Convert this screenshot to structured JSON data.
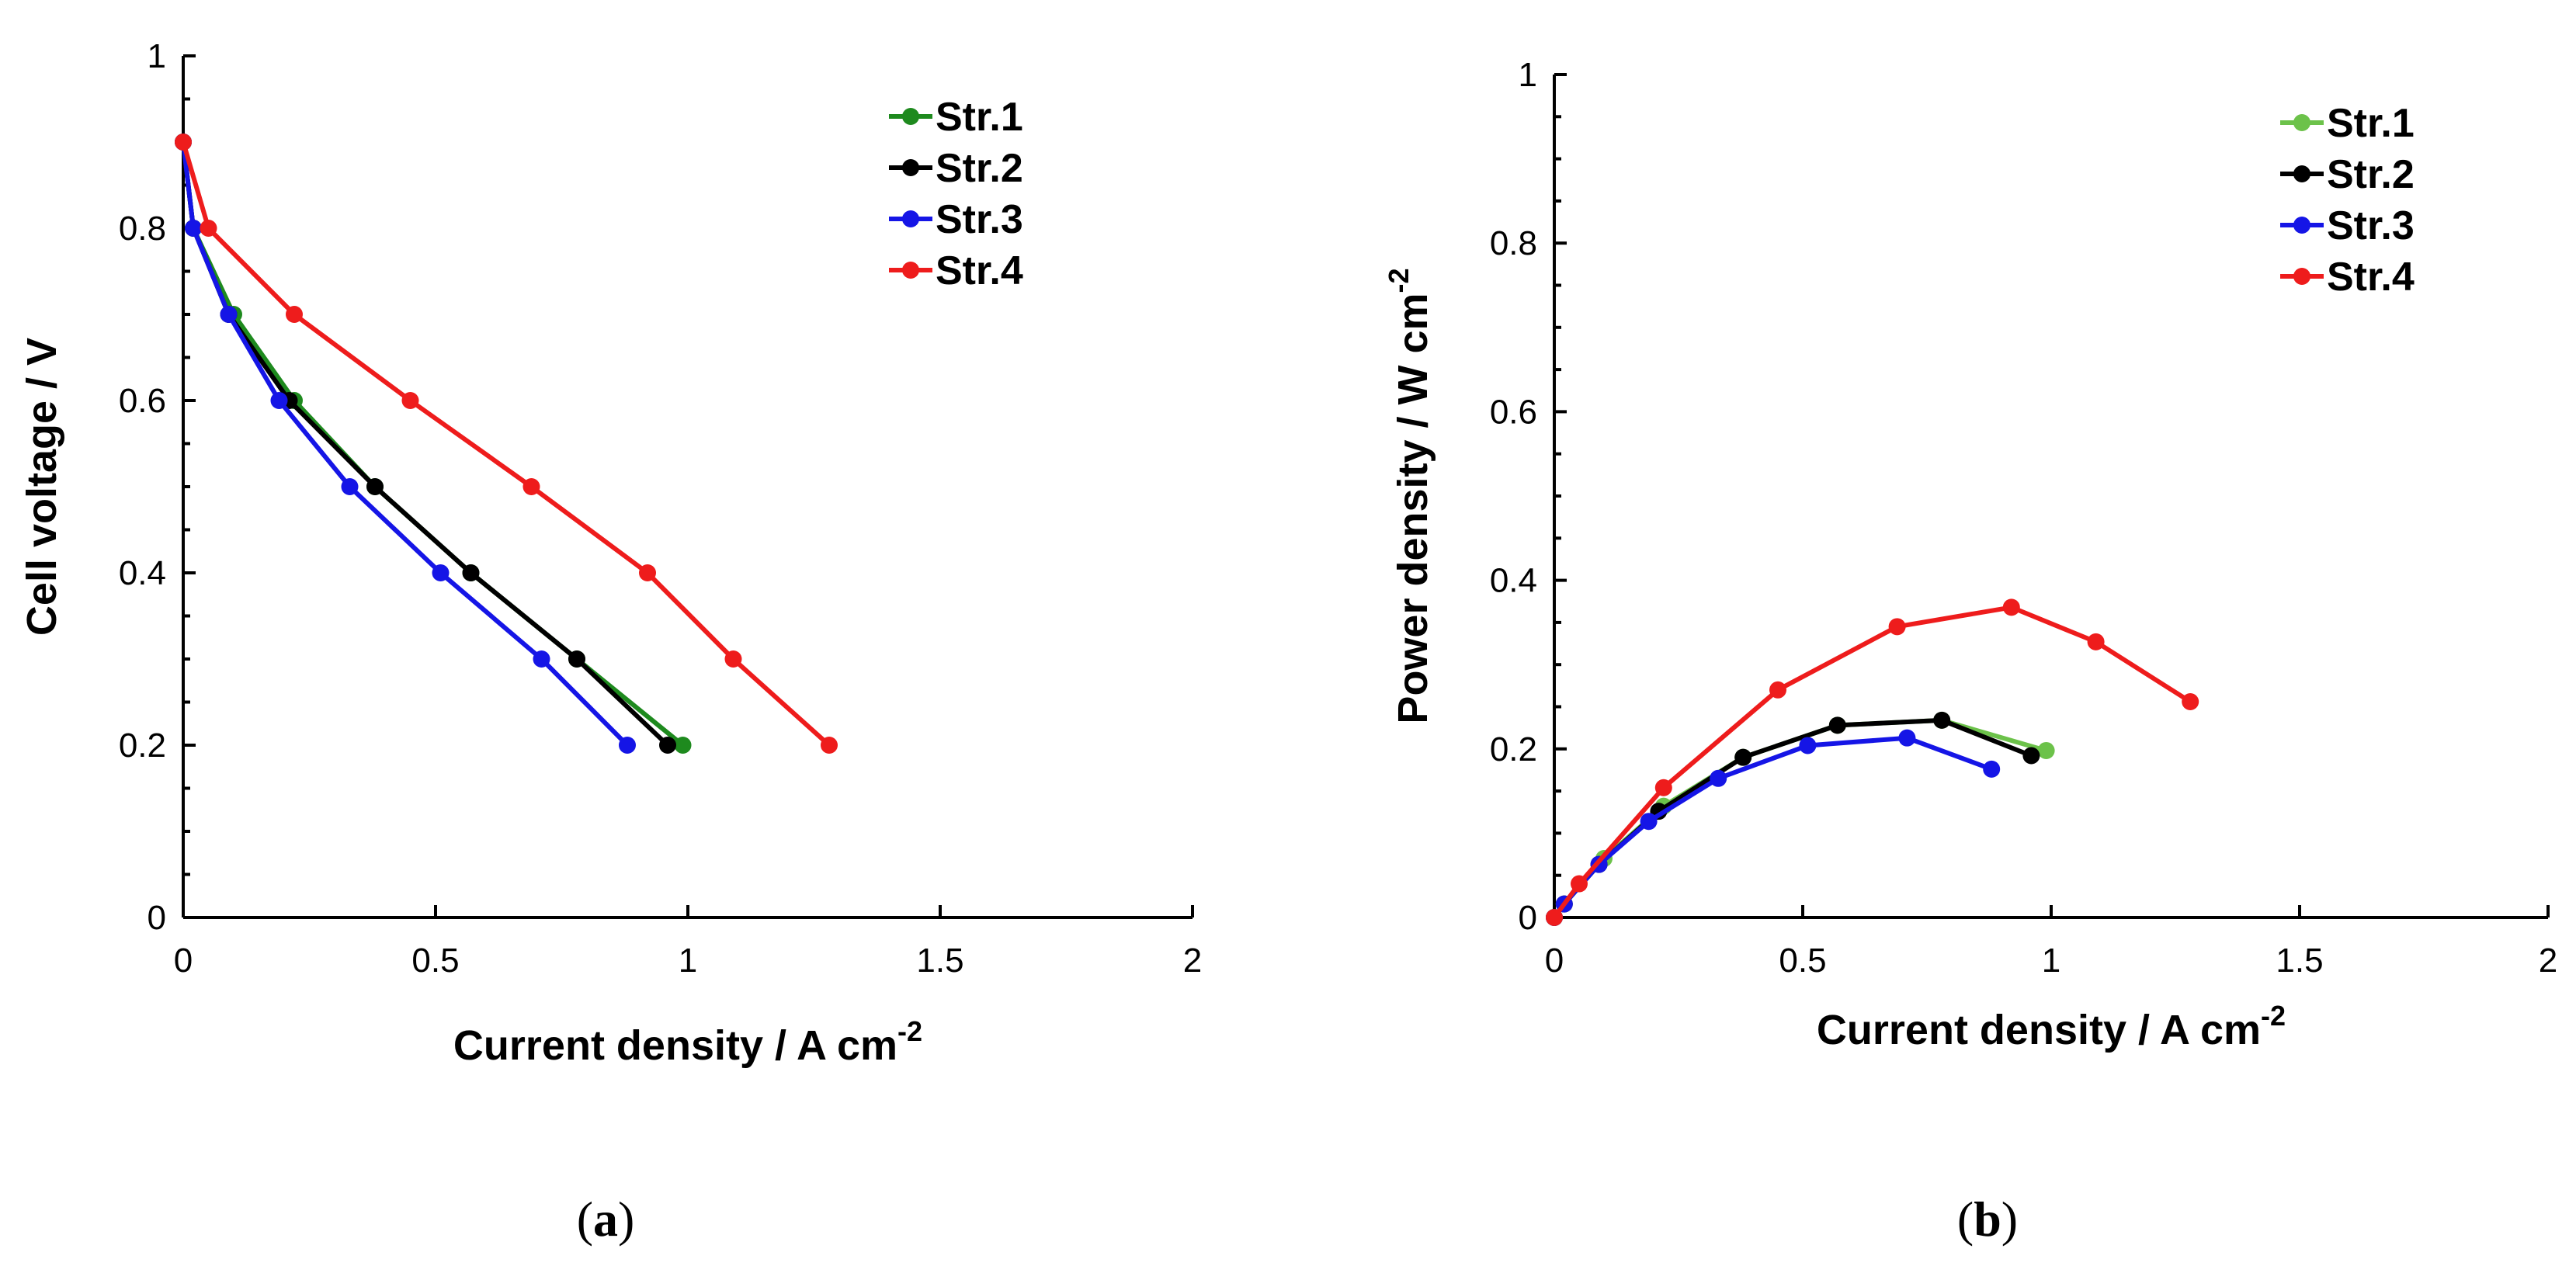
{
  "chart_data": [
    {
      "type": "line",
      "panel_label": "a",
      "title": "",
      "xlabel": "Current density / A cm",
      "xlabel_superscript": "-2",
      "ylabel": "Cell voltage  / V",
      "xlim": [
        0,
        2
      ],
      "ylim": [
        0,
        1
      ],
      "xticks": [
        0,
        0.5,
        1,
        1.5,
        2
      ],
      "xtick_labels": [
        "0",
        "0.5",
        "1",
        "1.5",
        "2"
      ],
      "yticks": [
        0,
        0.2,
        0.4,
        0.6,
        0.8,
        1
      ],
      "ytick_labels": [
        "0",
        "0.2",
        "0.4",
        "0.6",
        "0.8",
        "1"
      ],
      "legend_position": "top-right",
      "series": [
        {
          "name": "Str.1",
          "color": "#1e8a1e",
          "x": [
            0,
            0.02,
            0.1,
            0.22,
            0.38,
            0.57,
            0.78,
            0.99
          ],
          "y": [
            0.9,
            0.8,
            0.7,
            0.6,
            0.5,
            0.4,
            0.3,
            0.2
          ]
        },
        {
          "name": "Str.2",
          "color": "#000000",
          "x": [
            0,
            0.02,
            0.09,
            0.21,
            0.38,
            0.57,
            0.78,
            0.96
          ],
          "y": [
            0.9,
            0.8,
            0.7,
            0.6,
            0.5,
            0.4,
            0.3,
            0.2
          ]
        },
        {
          "name": "Str.3",
          "color": "#1515e6",
          "x": [
            0,
            0.02,
            0.09,
            0.19,
            0.33,
            0.51,
            0.71,
            0.88
          ],
          "y": [
            0.9,
            0.8,
            0.7,
            0.6,
            0.5,
            0.4,
            0.3,
            0.2
          ]
        },
        {
          "name": "Str.4",
          "color": "#ee1c1c",
          "x": [
            0,
            0.05,
            0.22,
            0.45,
            0.69,
            0.92,
            1.09,
            1.28
          ],
          "y": [
            0.9,
            0.8,
            0.7,
            0.6,
            0.5,
            0.4,
            0.3,
            0.2
          ]
        }
      ]
    },
    {
      "type": "line",
      "panel_label": "b",
      "title": "",
      "xlabel": "Current density / A cm",
      "xlabel_superscript": "-2",
      "ylabel": "Power density / W cm",
      "ylabel_superscript": "-2",
      "xlim": [
        0,
        2
      ],
      "ylim": [
        0,
        1
      ],
      "xticks": [
        0,
        0.5,
        1,
        1.5,
        2
      ],
      "xtick_labels": [
        "0",
        "0.5",
        "1",
        "1.5",
        "2"
      ],
      "yticks": [
        0,
        0.2,
        0.4,
        0.6,
        0.8,
        1
      ],
      "ytick_labels": [
        "0",
        "0.2",
        "0.4",
        "0.6",
        "0.8",
        "1"
      ],
      "legend_position": "top-right",
      "series": [
        {
          "name": "Str.1",
          "color": "#6cc24a",
          "x": [
            0,
            0.02,
            0.1,
            0.22,
            0.38,
            0.57,
            0.78,
            0.99
          ],
          "y": [
            0,
            0.016,
            0.07,
            0.132,
            0.19,
            0.228,
            0.234,
            0.198
          ]
        },
        {
          "name": "Str.2",
          "color": "#000000",
          "x": [
            0,
            0.02,
            0.09,
            0.21,
            0.38,
            0.57,
            0.78,
            0.96
          ],
          "y": [
            0,
            0.016,
            0.063,
            0.126,
            0.19,
            0.228,
            0.234,
            0.192
          ]
        },
        {
          "name": "Str.3",
          "color": "#1515e6",
          "x": [
            0,
            0.02,
            0.09,
            0.19,
            0.33,
            0.51,
            0.71,
            0.88
          ],
          "y": [
            0,
            0.016,
            0.063,
            0.114,
            0.165,
            0.204,
            0.213,
            0.176
          ]
        },
        {
          "name": "Str.4",
          "color": "#ee1c1c",
          "x": [
            0,
            0.05,
            0.22,
            0.45,
            0.69,
            0.92,
            1.09,
            1.28
          ],
          "y": [
            0,
            0.04,
            0.154,
            0.27,
            0.345,
            0.368,
            0.327,
            0.256
          ]
        }
      ]
    }
  ]
}
